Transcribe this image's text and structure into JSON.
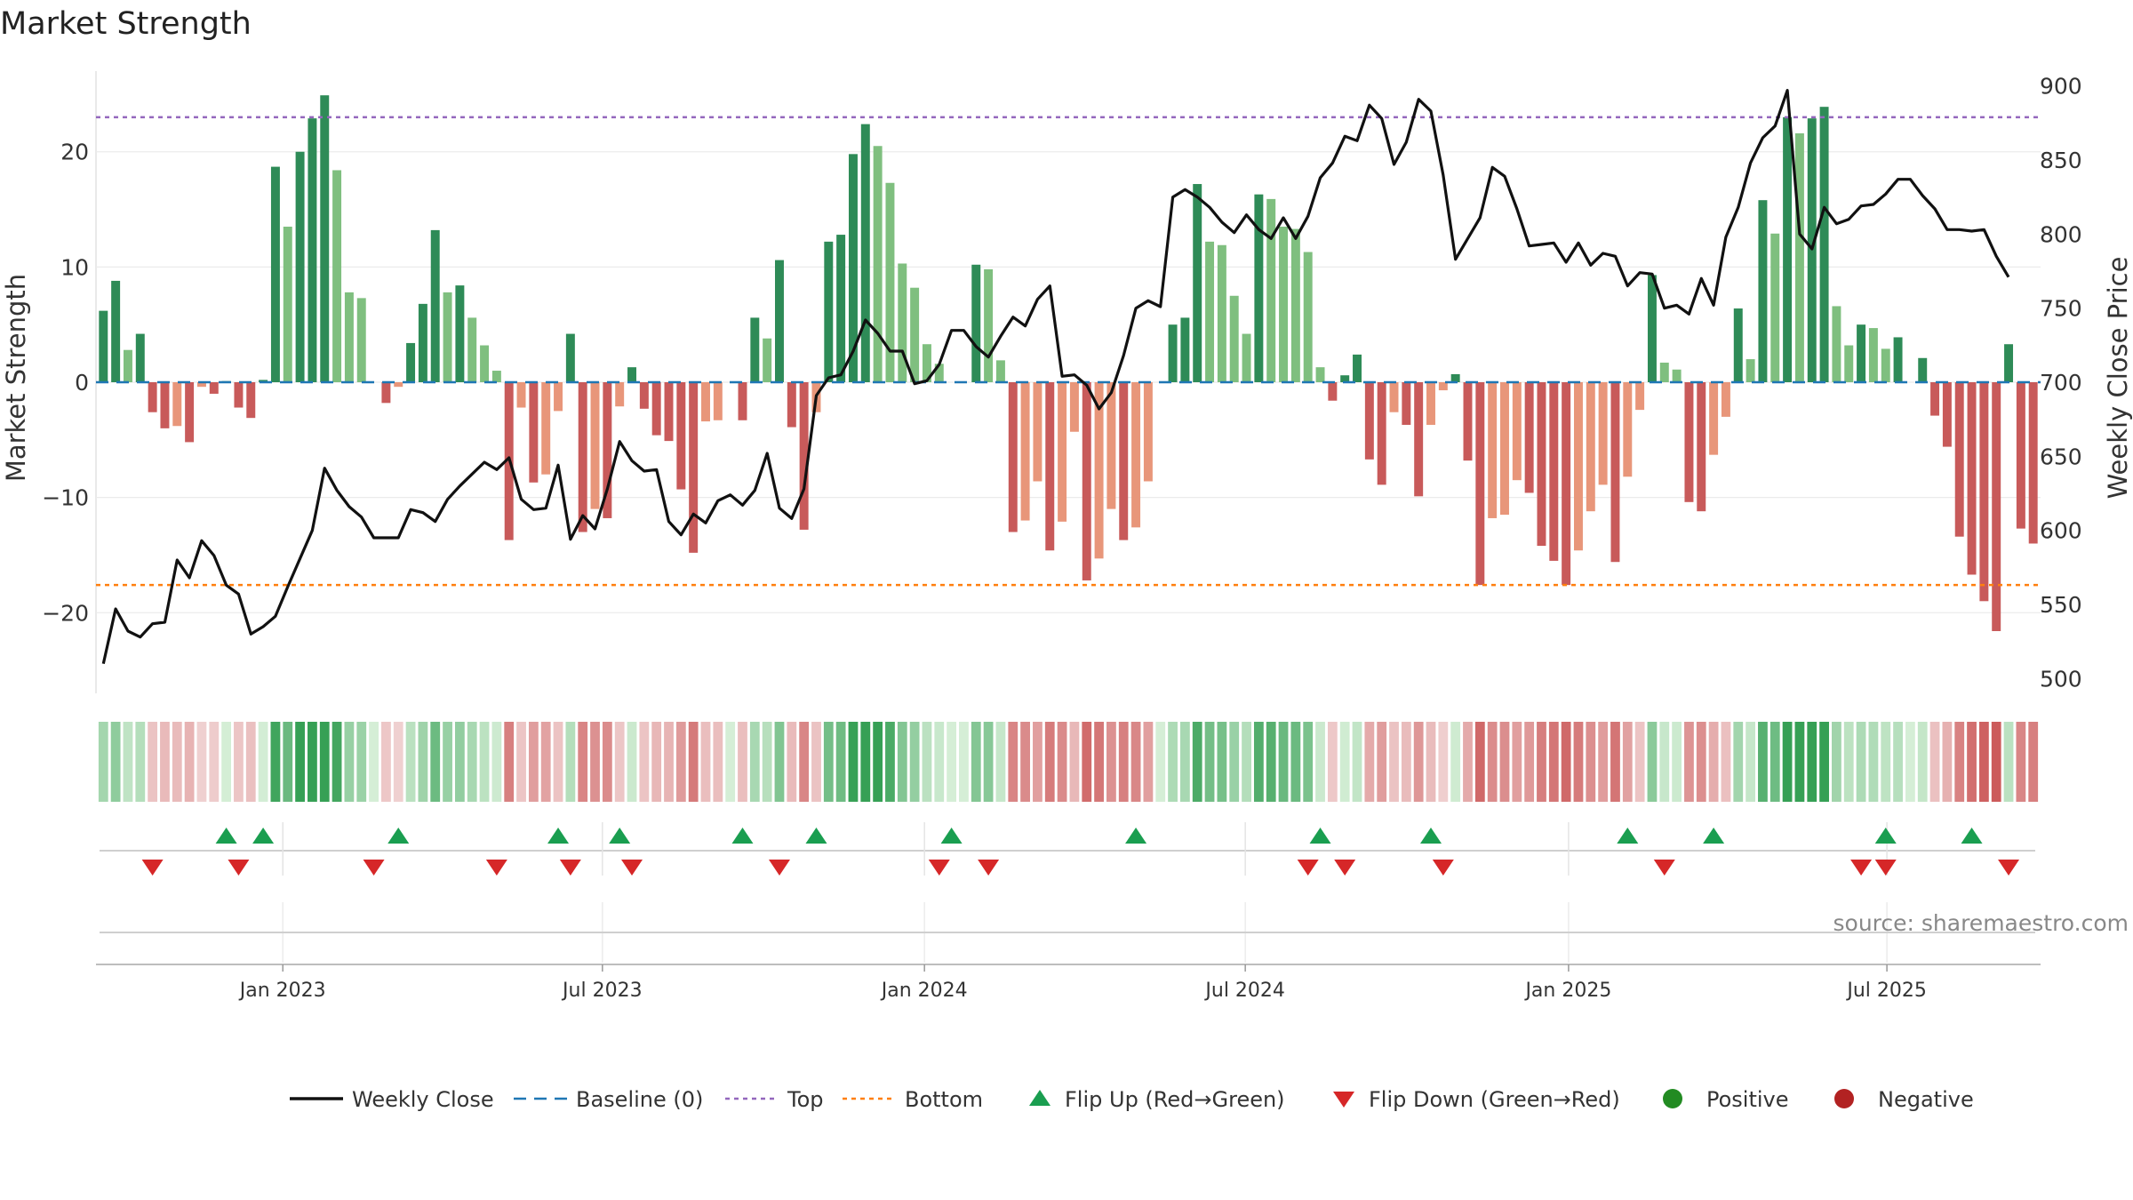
{
  "chart_data": {
    "type": "bar+line",
    "title": "Market Strength",
    "ylabel_left": "Market Strength",
    "ylabel_right": "Weekly Close Price",
    "left_ylim": [
      -27,
      27
    ],
    "left_ticks": [
      -20,
      -10,
      0,
      10,
      20
    ],
    "right_ylim": [
      490,
      910
    ],
    "right_ticks": [
      500,
      550,
      600,
      650,
      700,
      750,
      800,
      850,
      900
    ],
    "top_level": 23,
    "bottom_level": -17.6,
    "baseline": 0,
    "x_index_range": [
      -0.6,
      157.6
    ],
    "x_ticks": [
      {
        "label": "Jan 2023",
        "i": 14.6
      },
      {
        "label": "Jul 2023",
        "i": 40.6
      },
      {
        "label": "Jan 2024",
        "i": 66.8
      },
      {
        "label": "Jul 2024",
        "i": 92.9
      },
      {
        "label": "Jan 2025",
        "i": 119.2
      },
      {
        "label": "Jul 2025",
        "i": 145.1
      }
    ],
    "strength": [
      6.2,
      8.8,
      2.8,
      4.2,
      -2.6,
      -4.0,
      -3.8,
      -5.2,
      -0.4,
      -1.0,
      0.1,
      -2.2,
      -3.1,
      0.2,
      18.7,
      13.5,
      20.0,
      22.9,
      24.9,
      18.4,
      7.8,
      7.3,
      0,
      -1.8,
      -0.4,
      3.4,
      6.8,
      13.2,
      7.8,
      8.4,
      5.6,
      3.2,
      1.0,
      -13.7,
      -2.2,
      -8.7,
      -8.0,
      -2.5,
      4.2,
      -13.0,
      -11.0,
      -11.8,
      -2.1,
      1.3,
      -2.3,
      -4.6,
      -5.1,
      -9.3,
      -14.8,
      -3.4,
      -3.3,
      0,
      -3.3,
      5.6,
      3.8,
      10.6,
      -3.9,
      -12.8,
      -2.6,
      12.2,
      12.8,
      19.8,
      22.4,
      20.5,
      17.3,
      10.3,
      8.2,
      3.3,
      1.6,
      0,
      0,
      10.2,
      9.8,
      1.9,
      -13.0,
      -12.0,
      -8.6,
      -14.6,
      -12.1,
      -4.3,
      -17.2,
      -15.3,
      -11.0,
      -13.7,
      -12.6,
      -8.6,
      0,
      5.0,
      5.6,
      17.2,
      12.2,
      11.9,
      7.5,
      4.2,
      16.3,
      15.9,
      13.5,
      13.3,
      11.3,
      1.3,
      -1.6,
      0.6,
      2.4,
      -6.7,
      -8.9,
      -2.6,
      -3.7,
      -9.9,
      -3.7,
      -0.7,
      0.7,
      -6.8,
      -17.6,
      -11.8,
      -11.5,
      -8.5,
      -9.6,
      -14.2,
      -15.5,
      -17.6,
      -14.6,
      -11.2,
      -8.9,
      -15.6,
      -8.2,
      -2.4,
      9.3,
      1.7,
      1.1,
      -10.4,
      -11.2,
      -6.3,
      -3.0,
      6.4,
      2.0,
      15.8,
      12.9,
      23.0,
      21.6,
      22.9,
      23.9,
      6.6,
      3.2,
      5.0,
      4.7,
      2.9,
      3.9,
      0,
      2.1,
      -2.9,
      -5.6,
      -13.4,
      -16.7,
      -19.0,
      -21.6,
      3.3,
      -12.7,
      -14.0
    ],
    "weekly_close": [
      {
        "i": 0,
        "v": 510
      },
      {
        "i": 1,
        "v": 547
      },
      {
        "i": 2,
        "v": 532
      },
      {
        "i": 3,
        "v": 528
      },
      {
        "i": 4,
        "v": 537
      },
      {
        "i": 5,
        "v": 538
      },
      {
        "i": 6,
        "v": 580
      },
      {
        "i": 7,
        "v": 568
      },
      {
        "i": 8,
        "v": 593
      },
      {
        "i": 9,
        "v": 583
      },
      {
        "i": 10,
        "v": 563
      },
      {
        "i": 11,
        "v": 557
      },
      {
        "i": 12,
        "v": 530
      },
      {
        "i": 13,
        "v": 535
      },
      {
        "i": 14,
        "v": 542
      },
      {
        "i": 15,
        "v": 562
      },
      {
        "i": 16,
        "v": 581
      },
      {
        "i": 17,
        "v": 600
      },
      {
        "i": 18,
        "v": 642
      },
      {
        "i": 19,
        "v": 627
      },
      {
        "i": 20,
        "v": 616
      },
      {
        "i": 21,
        "v": 609
      },
      {
        "i": 22,
        "v": 595
      },
      {
        "i": 23,
        "v": 595
      },
      {
        "i": 24,
        "v": 595
      },
      {
        "i": 25,
        "v": 614
      },
      {
        "i": 26,
        "v": 612
      },
      {
        "i": 27,
        "v": 606
      },
      {
        "i": 28,
        "v": 621
      },
      {
        "i": 29,
        "v": 630
      },
      {
        "i": 30,
        "v": 638
      },
      {
        "i": 31,
        "v": 646
      },
      {
        "i": 32,
        "v": 641
      },
      {
        "i": 33,
        "v": 649
      },
      {
        "i": 34,
        "v": 621
      },
      {
        "i": 35,
        "v": 614
      },
      {
        "i": 36,
        "v": 615
      },
      {
        "i": 37,
        "v": 644
      },
      {
        "i": 38,
        "v": 594
      },
      {
        "i": 39,
        "v": 610
      },
      {
        "i": 40,
        "v": 601
      },
      {
        "i": 41,
        "v": 628
      },
      {
        "i": 42,
        "v": 660
      },
      {
        "i": 43,
        "v": 647
      },
      {
        "i": 44,
        "v": 640
      },
      {
        "i": 45,
        "v": 641
      },
      {
        "i": 46,
        "v": 606
      },
      {
        "i": 47,
        "v": 597
      },
      {
        "i": 48,
        "v": 611
      },
      {
        "i": 49,
        "v": 605
      },
      {
        "i": 50,
        "v": 620
      },
      {
        "i": 51,
        "v": 624
      },
      {
        "i": 52,
        "v": 617
      },
      {
        "i": 53,
        "v": 627
      },
      {
        "i": 54,
        "v": 652
      },
      {
        "i": 55,
        "v": 615
      },
      {
        "i": 56,
        "v": 608
      },
      {
        "i": 57,
        "v": 628
      },
      {
        "i": 58,
        "v": 691
      },
      {
        "i": 59,
        "v": 703
      },
      {
        "i": 60,
        "v": 705
      },
      {
        "i": 61,
        "v": 721
      },
      {
        "i": 62,
        "v": 742
      },
      {
        "i": 63,
        "v": 733
      },
      {
        "i": 64,
        "v": 721
      },
      {
        "i": 65,
        "v": 721
      },
      {
        "i": 66,
        "v": 699
      },
      {
        "i": 67,
        "v": 701
      },
      {
        "i": 68,
        "v": 712
      },
      {
        "i": 69,
        "v": 735
      },
      {
        "i": 70,
        "v": 735
      },
      {
        "i": 71,
        "v": 724
      },
      {
        "i": 72,
        "v": 717
      },
      {
        "i": 73,
        "v": 731
      },
      {
        "i": 74,
        "v": 744
      },
      {
        "i": 75,
        "v": 738
      },
      {
        "i": 76,
        "v": 756
      },
      {
        "i": 77,
        "v": 765
      },
      {
        "i": 78,
        "v": 704
      },
      {
        "i": 79,
        "v": 705
      },
      {
        "i": 80,
        "v": 698
      },
      {
        "i": 81,
        "v": 682
      },
      {
        "i": 82,
        "v": 693
      },
      {
        "i": 83,
        "v": 718
      },
      {
        "i": 84,
        "v": 750
      },
      {
        "i": 85,
        "v": 755
      },
      {
        "i": 86,
        "v": 751
      },
      {
        "i": 87,
        "v": 825
      },
      {
        "i": 88,
        "v": 830
      },
      {
        "i": 89,
        "v": 825
      },
      {
        "i": 90,
        "v": 818
      },
      {
        "i": 91,
        "v": 808
      },
      {
        "i": 92,
        "v": 801
      },
      {
        "i": 93,
        "v": 813
      },
      {
        "i": 94,
        "v": 803
      },
      {
        "i": 95,
        "v": 797
      },
      {
        "i": 96,
        "v": 811
      },
      {
        "i": 97,
        "v": 797
      },
      {
        "i": 98,
        "v": 812
      },
      {
        "i": 99,
        "v": 838
      },
      {
        "i": 100,
        "v": 848
      },
      {
        "i": 101,
        "v": 866
      },
      {
        "i": 102,
        "v": 863
      },
      {
        "i": 103,
        "v": 887
      },
      {
        "i": 104,
        "v": 878
      },
      {
        "i": 105,
        "v": 847
      },
      {
        "i": 106,
        "v": 862
      },
      {
        "i": 107,
        "v": 891
      },
      {
        "i": 108,
        "v": 883
      },
      {
        "i": 109,
        "v": 840
      },
      {
        "i": 110,
        "v": 783
      },
      {
        "i": 111,
        "v": 797
      },
      {
        "i": 112,
        "v": 811
      },
      {
        "i": 113,
        "v": 845
      },
      {
        "i": 114,
        "v": 839
      },
      {
        "i": 115,
        "v": 817
      },
      {
        "i": 116,
        "v": 792
      },
      {
        "i": 117,
        "v": 793
      },
      {
        "i": 118,
        "v": 794
      },
      {
        "i": 119,
        "v": 781
      },
      {
        "i": 120,
        "v": 794
      },
      {
        "i": 121,
        "v": 779
      },
      {
        "i": 122,
        "v": 787
      },
      {
        "i": 123,
        "v": 785
      },
      {
        "i": 124,
        "v": 765
      },
      {
        "i": 125,
        "v": 774
      },
      {
        "i": 126,
        "v": 773
      },
      {
        "i": 127,
        "v": 750
      },
      {
        "i": 128,
        "v": 752
      },
      {
        "i": 129,
        "v": 746
      },
      {
        "i": 130,
        "v": 770
      },
      {
        "i": 131,
        "v": 752
      },
      {
        "i": 132,
        "v": 798
      },
      {
        "i": 133,
        "v": 818
      },
      {
        "i": 134,
        "v": 848
      },
      {
        "i": 135,
        "v": 865
      },
      {
        "i": 136,
        "v": 873
      },
      {
        "i": 137,
        "v": 897
      },
      {
        "i": 138,
        "v": 800
      },
      {
        "i": 139,
        "v": 790
      },
      {
        "i": 140,
        "v": 818
      },
      {
        "i": 141,
        "v": 807
      },
      {
        "i": 142,
        "v": 810
      },
      {
        "i": 143,
        "v": 819
      },
      {
        "i": 144,
        "v": 820
      },
      {
        "i": 145,
        "v": 827
      },
      {
        "i": 146,
        "v": 837
      },
      {
        "i": 147,
        "v": 837
      },
      {
        "i": 148,
        "v": 826
      },
      {
        "i": 149,
        "v": 817
      },
      {
        "i": 150,
        "v": 803
      },
      {
        "i": 151,
        "v": 803
      },
      {
        "i": 152,
        "v": 802
      },
      {
        "i": 153,
        "v": 803
      },
      {
        "i": 154,
        "v": 785
      },
      {
        "i": 155,
        "v": 771
      }
    ],
    "flip_up_i": [
      10,
      13,
      24,
      37,
      42,
      52,
      58,
      69,
      84,
      99,
      108,
      124,
      131,
      145,
      152
    ],
    "flip_down_i": [
      4,
      11,
      22,
      32,
      38,
      43,
      55,
      68,
      72,
      98,
      101,
      109,
      127,
      143,
      145,
      155
    ],
    "strip_ticks": [
      {
        "label": "Jan 2023",
        "i": 14.6
      },
      {
        "label": "Jul 2023",
        "i": 40.6
      },
      {
        "label": "Jan 2024",
        "i": 66.8
      },
      {
        "label": "Jul 2024",
        "i": 92.9
      },
      {
        "label": "Jan 2025",
        "i": 119.2
      },
      {
        "label": "Jul 2025",
        "i": 145.1
      }
    ],
    "source_text": "source: sharemaestro.com",
    "legend": [
      {
        "key": "line",
        "label": "Weekly Close"
      },
      {
        "key": "baseline",
        "label": "Baseline (0)"
      },
      {
        "key": "top",
        "label": "Top"
      },
      {
        "key": "bottom",
        "label": "Bottom"
      },
      {
        "key": "flip_up",
        "label": "Flip Up (Red→Green)"
      },
      {
        "key": "flip_down",
        "label": "Flip Down (Green→Red)"
      },
      {
        "key": "positive",
        "label": "Positive"
      },
      {
        "key": "negative",
        "label": "Negative"
      }
    ],
    "colors": {
      "pos_strong": "#2e8b57",
      "pos_weak": "#7fbf7f",
      "neg_strong": "#c85a5a",
      "neg_weak": "#e8967a",
      "line": "#111111",
      "baseline": "#1f77b4",
      "top": "#9467bd",
      "bottom": "#ff7f0e",
      "flip_up": "#1a9e50",
      "flip_down": "#d62728",
      "positive": "#228b22",
      "negative": "#b22222"
    }
  }
}
